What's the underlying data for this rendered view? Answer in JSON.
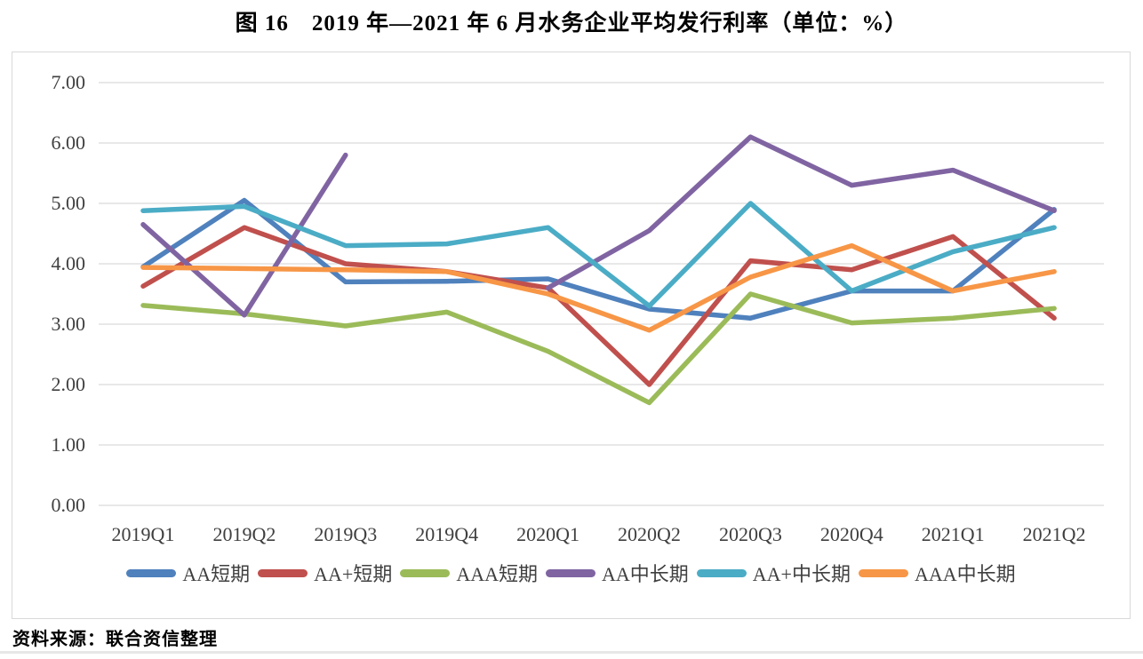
{
  "title": "图 16　2019 年—2021 年 6 月水务企业平均发行利率（单位：%）",
  "source_note": "资料来源：联合资信整理",
  "chart_data": {
    "type": "line",
    "title": "图 16　2019 年—2021 年 6 月水务企业平均发行利率（单位：%）",
    "xlabel": "",
    "ylabel": "",
    "unit": "%",
    "ylim": [
      0.0,
      7.0
    ],
    "ytick_step": 1.0,
    "yticks": [
      "0.00",
      "1.00",
      "2.00",
      "3.00",
      "4.00",
      "5.00",
      "6.00",
      "7.00"
    ],
    "grid": true,
    "legend_position": "bottom",
    "categories": [
      "2019Q1",
      "2019Q2",
      "2019Q3",
      "2019Q4",
      "2020Q1",
      "2020Q2",
      "2020Q3",
      "2020Q4",
      "2021Q1",
      "2021Q2"
    ],
    "series": [
      {
        "name": "AA短期",
        "color": "#4F81BD",
        "values": [
          3.95,
          5.05,
          3.7,
          3.71,
          3.75,
          3.25,
          3.1,
          3.55,
          3.55,
          4.9
        ]
      },
      {
        "name": "AA+短期",
        "color": "#C0504D",
        "values": [
          3.63,
          4.6,
          4.0,
          3.87,
          3.6,
          2.0,
          4.05,
          3.9,
          4.45,
          3.1
        ]
      },
      {
        "name": "AAA短期",
        "color": "#9BBB59",
        "values": [
          3.31,
          3.17,
          2.97,
          3.2,
          2.55,
          1.7,
          3.5,
          3.02,
          3.1,
          3.26
        ]
      },
      {
        "name": "AA中长期",
        "color": "#8064A2",
        "values": [
          4.65,
          3.15,
          5.8,
          null,
          3.6,
          4.55,
          6.1,
          5.3,
          5.55,
          4.88
        ]
      },
      {
        "name": "AA+中长期",
        "color": "#4BACC6",
        "values": [
          4.88,
          4.95,
          4.3,
          4.33,
          4.6,
          3.3,
          5.0,
          3.55,
          4.2,
          4.6
        ]
      },
      {
        "name": "AAA中长期",
        "color": "#F79646",
        "values": [
          3.94,
          3.92,
          3.9,
          3.87,
          3.5,
          2.9,
          3.78,
          4.3,
          3.55,
          3.87
        ]
      }
    ]
  }
}
